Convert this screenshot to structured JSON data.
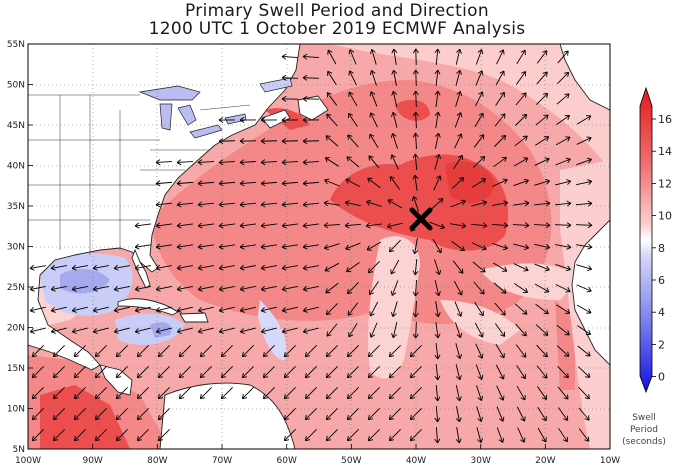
{
  "title_line1": "Primary Swell Period and Direction",
  "title_line2": "1200 UTC 1 October 2019 ECMWF Analysis",
  "lat_labels": [
    "55N",
    "50N",
    "45N",
    "40N",
    "35N",
    "30N",
    "25N",
    "20N",
    "15N",
    "10N",
    "5N"
  ],
  "lon_labels": [
    "100W",
    "90W",
    "80W",
    "70W",
    "60W",
    "50W",
    "40W",
    "30W",
    "20W",
    "10W"
  ],
  "colorbar": {
    "ticks": [
      "16",
      "14",
      "12",
      "10",
      "8",
      "6",
      "4",
      "2",
      "0"
    ],
    "caption": [
      "Swell",
      "Period",
      "(seconds)"
    ]
  },
  "marker": {
    "type": "X",
    "lon": -39.5,
    "lat": 33.5,
    "label": ""
  },
  "colors": {
    "ocean_base": "#f7a8a8",
    "light": "#fbd3d3",
    "mid": "#f48787",
    "deep": "#ec4d4d",
    "blue_light": "#c9cdf7",
    "blue_mid": "#a5aaf0",
    "lake": "#b9bdf2",
    "land": "#ffffff",
    "arrow": "#000000"
  }
}
